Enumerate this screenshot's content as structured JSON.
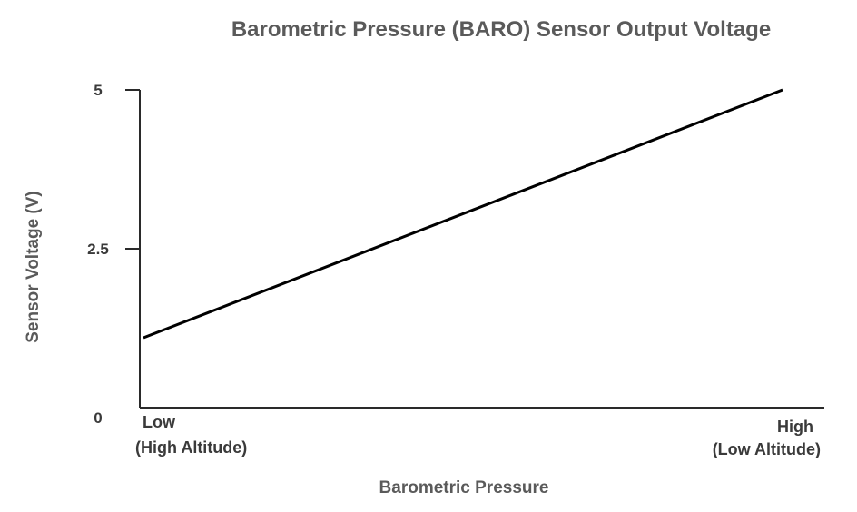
{
  "chart_data": {
    "type": "line",
    "title": "Barometric Pressure (BARO) Sensor Output Voltage",
    "xlabel": "Barometric Pressure",
    "ylabel": "Sensor Voltage (V)",
    "x_categories": [
      {
        "line1": "Low",
        "line2": "(High Altitude)"
      },
      {
        "line1": "High",
        "line2": "(Low Altitude)"
      }
    ],
    "x": [
      0,
      1
    ],
    "ylim": [
      0,
      5
    ],
    "yticks": [
      0,
      2.5,
      5
    ],
    "ytick_labels": [
      "0",
      "2.5",
      "5"
    ],
    "series": [
      {
        "values": [
          1.1,
          5.0
        ]
      }
    ],
    "grid": false,
    "colors": {
      "line": "#000000",
      "axis": "#2a2a2a",
      "text": "#5a5a5a"
    }
  }
}
